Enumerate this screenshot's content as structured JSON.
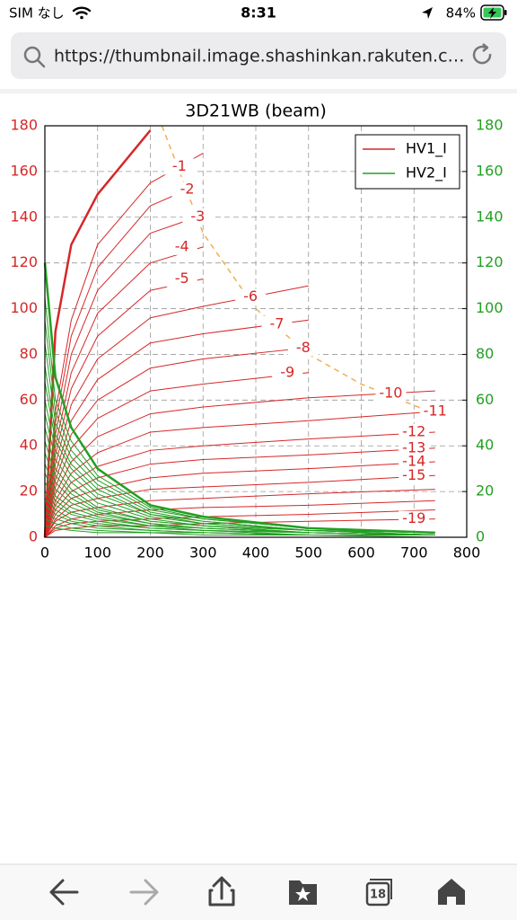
{
  "status_bar": {
    "carrier": "SIM なし",
    "time": "8:31",
    "battery": "84%"
  },
  "address_bar": {
    "url": "https://thumbnail.image.shashinkan.rakuten.c…"
  },
  "toolbar": {
    "tabs": "18"
  },
  "chart_data": {
    "type": "line",
    "title": "3D21WB (beam)",
    "xlim": [
      0,
      800
    ],
    "xticks": [
      0,
      100,
      200,
      300,
      400,
      500,
      600,
      700,
      800
    ],
    "ylim": [
      0,
      180
    ],
    "yticks": [
      0,
      20,
      40,
      60,
      80,
      100,
      120,
      140,
      160,
      180
    ],
    "y2lim": [
      0,
      180
    ],
    "y2ticks": [
      0,
      20,
      40,
      60,
      80,
      100,
      120,
      140,
      160,
      180
    ],
    "grid": true,
    "legend": {
      "position": "upper right",
      "entries": [
        {
          "name": "HV1_I",
          "color": "#d62728"
        },
        {
          "name": "HV2_I",
          "color": "#22a022"
        }
      ]
    },
    "dissipation": {
      "color": "#f0b050",
      "x": [
        222,
        300,
        400,
        500,
        600,
        740
      ],
      "y": [
        180,
        133,
        100,
        80,
        67,
        54
      ]
    },
    "x": [
      0,
      20,
      50,
      100,
      200,
      300,
      500,
      740
    ],
    "curves": [
      {
        "label": null,
        "hv1": [
          0,
          90,
          128,
          150,
          178,
          null,
          null,
          null
        ],
        "hv2": [
          120,
          70,
          48,
          30,
          14,
          9,
          4,
          2
        ]
      },
      {
        "label": "-1",
        "hv1": [
          0,
          55,
          95,
          128,
          155,
          168,
          null,
          null
        ],
        "hv2": [
          105,
          60,
          42,
          27,
          13,
          8,
          4,
          2
        ]
      },
      {
        "label": "-2",
        "hv1": [
          0,
          50,
          88,
          118,
          145,
          155,
          null,
          null
        ],
        "hv2": [
          95,
          55,
          38,
          25,
          12,
          8,
          4,
          2
        ]
      },
      {
        "label": "-3",
        "hv1": [
          0,
          45,
          80,
          108,
          133,
          141,
          null,
          null
        ],
        "hv2": [
          85,
          50,
          35,
          23,
          11,
          7,
          3,
          2
        ]
      },
      {
        "label": "-4",
        "hv1": [
          0,
          40,
          72,
          98,
          120,
          127,
          null,
          null
        ],
        "hv2": [
          75,
          45,
          32,
          21,
          10,
          7,
          3,
          2
        ]
      },
      {
        "label": "-5",
        "hv1": [
          0,
          36,
          65,
          88,
          108,
          113,
          null,
          null
        ],
        "hv2": [
          68,
          42,
          30,
          19,
          10,
          6,
          3,
          1
        ]
      },
      {
        "label": "-6",
        "hv1": [
          0,
          32,
          58,
          78,
          96,
          101,
          110,
          null
        ],
        "hv2": [
          60,
          38,
          27,
          17,
          9,
          6,
          3,
          1
        ]
      },
      {
        "label": "-7",
        "hv1": [
          0,
          28,
          51,
          69,
          85,
          89,
          95,
          null
        ],
        "hv2": [
          54,
          34,
          24,
          15,
          8,
          5,
          3,
          1
        ]
      },
      {
        "label": "-8",
        "hv1": [
          0,
          25,
          45,
          60,
          74,
          78,
          83,
          null
        ],
        "hv2": [
          48,
          30,
          21,
          13,
          7,
          5,
          2,
          1
        ]
      },
      {
        "label": "-9",
        "hv1": [
          0,
          22,
          39,
          52,
          64,
          67,
          72,
          null
        ],
        "hv2": [
          42,
          27,
          19,
          12,
          7,
          5,
          2,
          1
        ]
      },
      {
        "label": "-10",
        "hv1": [
          0,
          19,
          33,
          44,
          54,
          57,
          61,
          64
        ],
        "hv2": [
          37,
          24,
          17,
          11,
          6,
          4,
          2,
          1
        ]
      },
      {
        "label": "-11",
        "hv1": [
          0,
          16,
          28,
          37,
          46,
          48,
          51,
          55
        ],
        "hv2": [
          32,
          21,
          15,
          10,
          6,
          4,
          2,
          1
        ]
      },
      {
        "label": "-12",
        "hv1": [
          0,
          14,
          24,
          31,
          38,
          40,
          43,
          46
        ],
        "hv2": [
          28,
          18,
          13,
          9,
          5,
          4,
          2,
          1
        ]
      },
      {
        "label": "-13",
        "hv1": [
          0,
          12,
          20,
          26,
          32,
          34,
          36,
          39
        ],
        "hv2": [
          24,
          16,
          11,
          8,
          5,
          3,
          2,
          1
        ]
      },
      {
        "label": "-14",
        "hv1": [
          0,
          10,
          17,
          21,
          26,
          28,
          30,
          33
        ],
        "hv2": [
          20,
          14,
          10,
          7,
          4,
          3,
          2,
          1
        ]
      },
      {
        "label": "-15",
        "hv1": [
          0,
          8,
          14,
          17,
          21,
          22,
          24,
          27
        ],
        "hv2": [
          17,
          12,
          8,
          6,
          4,
          3,
          1,
          1
        ]
      },
      {
        "label": null,
        "hv1": [
          0,
          7,
          11,
          13,
          16,
          17,
          19,
          21
        ],
        "hv2": [
          14,
          10,
          7,
          5,
          3,
          2,
          1,
          1
        ]
      },
      {
        "label": null,
        "hv1": [
          0,
          5,
          8,
          10,
          12,
          13,
          14,
          16
        ],
        "hv2": [
          11,
          8,
          6,
          4,
          3,
          2,
          1,
          1
        ]
      },
      {
        "label": null,
        "hv1": [
          0,
          4,
          6,
          7,
          8,
          9,
          10,
          12
        ],
        "hv2": [
          8,
          6,
          4,
          3,
          2,
          2,
          1,
          1
        ]
      },
      {
        "label": "-19",
        "hv1": [
          0,
          3,
          4,
          5,
          5,
          6,
          7,
          8
        ],
        "hv2": [
          5,
          4,
          3,
          2,
          2,
          1,
          1,
          0
        ]
      }
    ]
  }
}
